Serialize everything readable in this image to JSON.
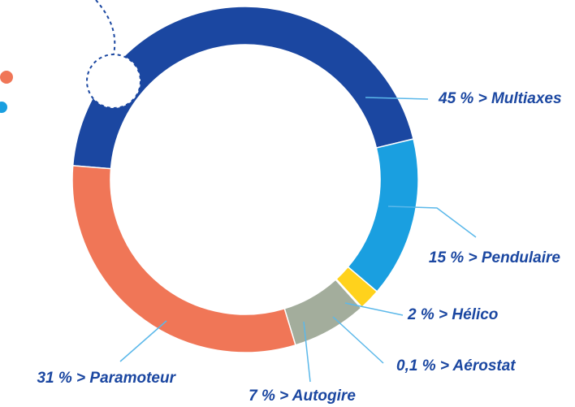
{
  "chart_data": {
    "type": "donut",
    "values": [
      45,
      15,
      2,
      0.1,
      7,
      31
    ],
    "value_labels": [
      "45 % > Multiaxes",
      "15 % > Pendulaire",
      "2 % > Hélico",
      "0,1 % > Aérostat",
      "7 % > Autogire",
      "31 % > Paramoteur"
    ],
    "colors": [
      "#1b47a1",
      "#1a9fe0",
      "#ffd21c",
      "#a8b7e6",
      "#a3ad9c",
      "#f07657"
    ]
  }
}
